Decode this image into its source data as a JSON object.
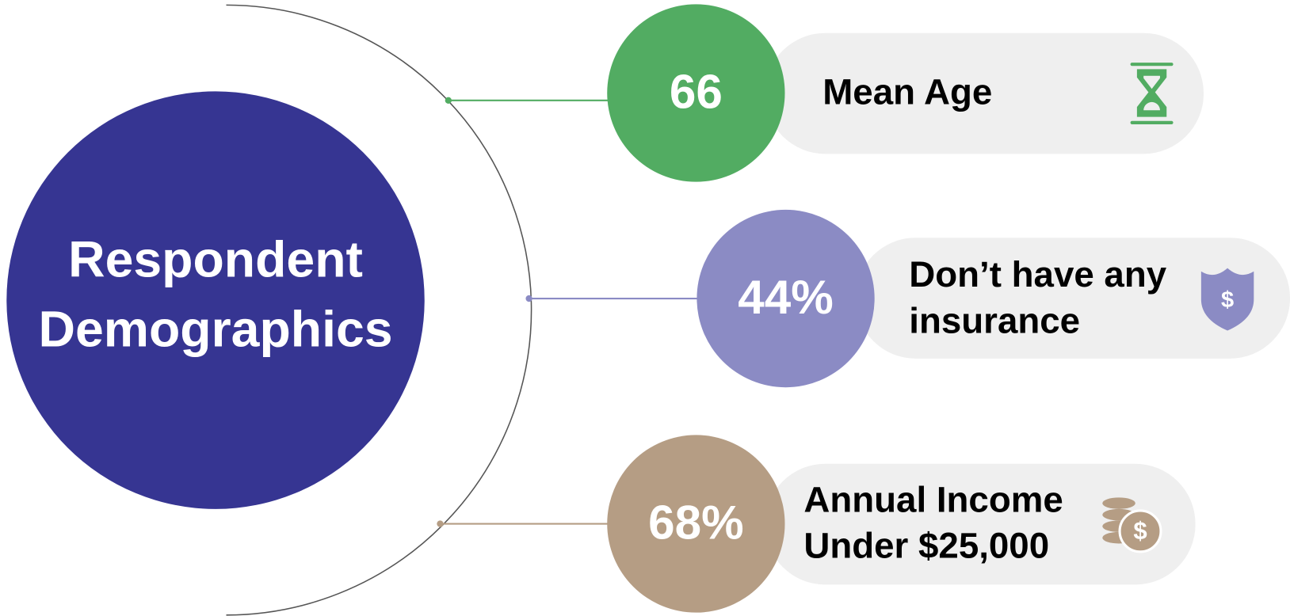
{
  "title": {
    "lines": [
      "Respondent",
      "Demographics"
    ],
    "color": "#363592"
  },
  "items": [
    {
      "value": "66",
      "label": [
        "Mean Age"
      ],
      "color": "#52ac62"
    },
    {
      "value": "44%",
      "label": [
        "Don’t have any",
        "insurance"
      ],
      "color": "#8b8bc4"
    },
    {
      "value": "68%",
      "label": [
        "Annual Income",
        "Under $25,000"
      ],
      "color": "#b59d84"
    }
  ]
}
